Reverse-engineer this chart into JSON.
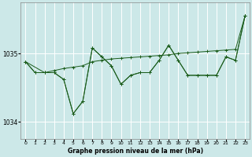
{
  "background_color": "#cce8e8",
  "grid_color": "#ffffff",
  "line_color": "#1a5c1a",
  "xlabel": "Graphe pression niveau de la mer (hPa)",
  "yticks": [
    1034,
    1035
  ],
  "xticks": [
    0,
    1,
    2,
    3,
    4,
    5,
    6,
    7,
    8,
    9,
    10,
    11,
    12,
    13,
    14,
    15,
    16,
    17,
    18,
    19,
    20,
    21,
    22,
    23
  ],
  "ylim": [
    1033.75,
    1035.75
  ],
  "xlim": [
    -0.5,
    23.5
  ],
  "line1_x": [
    0,
    1,
    2,
    3,
    4,
    5,
    6,
    7,
    8,
    9,
    10,
    11,
    12,
    13,
    14,
    15,
    16,
    17,
    18,
    19,
    20,
    21,
    22,
    23
  ],
  "line1_y": [
    1034.88,
    1034.72,
    1034.72,
    1034.75,
    1034.78,
    1034.8,
    1034.82,
    1034.88,
    1034.9,
    1034.92,
    1034.93,
    1034.94,
    1034.95,
    1034.96,
    1034.97,
    1034.98,
    1035.0,
    1035.01,
    1035.02,
    1035.03,
    1035.04,
    1035.05,
    1035.06,
    1035.55
  ],
  "line2_x": [
    0,
    1,
    2,
    3,
    4,
    5,
    6,
    7,
    8,
    9,
    10,
    11,
    12,
    13,
    14,
    15,
    16,
    17,
    18,
    19,
    20,
    21,
    22,
    23
  ],
  "line2_y": [
    1034.88,
    1034.72,
    1034.72,
    1034.72,
    1034.62,
    1034.12,
    1034.3,
    1035.08,
    1034.95,
    1034.82,
    1034.55,
    1034.68,
    1034.72,
    1034.72,
    1034.9,
    1035.12,
    1034.9,
    1034.68,
    1034.68,
    1034.68,
    1034.68,
    1034.95,
    1034.9,
    1035.55
  ],
  "line3_x": [
    0,
    2,
    3,
    4,
    5,
    6,
    7,
    8,
    9,
    10,
    11,
    12,
    13,
    14,
    15,
    16,
    17,
    18,
    19,
    20,
    21,
    22,
    23
  ],
  "line3_y": [
    1034.88,
    1034.72,
    1034.72,
    1034.62,
    1034.12,
    1034.3,
    1035.08,
    1034.95,
    1034.82,
    1034.55,
    1034.68,
    1034.72,
    1034.72,
    1034.9,
    1035.12,
    1034.9,
    1034.68,
    1034.68,
    1034.68,
    1034.68,
    1034.95,
    1034.9,
    1035.55
  ]
}
